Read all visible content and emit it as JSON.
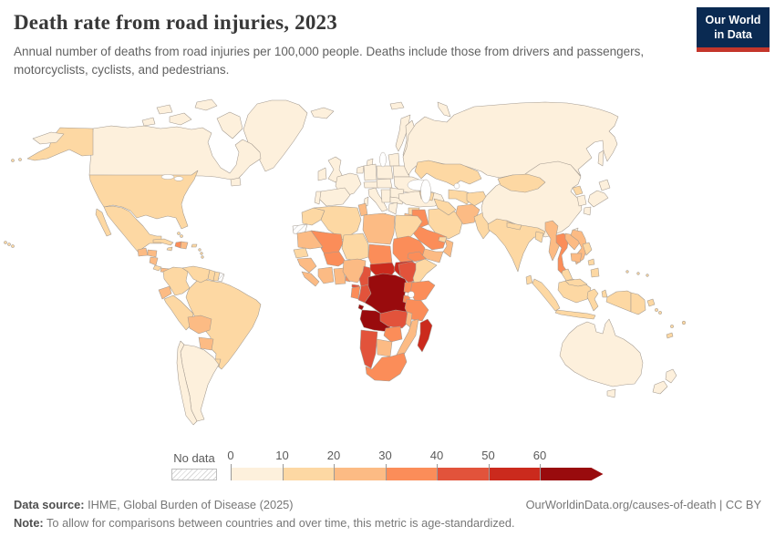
{
  "header": {
    "title": "Death rate from road injuries, 2023",
    "subtitle": "Annual number of deaths from road injuries per 100,000 people. Deaths include those from drivers and passengers, motorcyclists, cyclists, and pedestrians.",
    "logo": {
      "line1": "Our World",
      "line2": "in Data",
      "bg_color": "#0A2A52",
      "accent_color": "#C4362B"
    }
  },
  "chart_data": {
    "type": "choropleth",
    "title": "Death rate from road injuries, 2023",
    "unit": "deaths from road injuries per 100,000 people",
    "year": 2023,
    "legend": {
      "no_data_label": "No data",
      "tick_labels": [
        "0",
        "10",
        "20",
        "30",
        "40",
        "50",
        "60"
      ],
      "thresholds": [
        0,
        10,
        20,
        30,
        40,
        50,
        60
      ],
      "colors": [
        "#FDF0DC",
        "#FDD8A3",
        "#FCBB84",
        "#FB8D59",
        "#E2533B",
        "#CB2A1D",
        "#990B0D"
      ],
      "open_ended": true,
      "border_color": "#a39a90"
    },
    "regions": [
      {
        "name": "Canada",
        "value": 6
      },
      {
        "name": "United States",
        "value": 12
      },
      {
        "name": "Greenland",
        "value": 7
      },
      {
        "name": "Mexico",
        "value": 13
      },
      {
        "name": "Guatemala",
        "value": 21
      },
      {
        "name": "Honduras",
        "value": 23
      },
      {
        "name": "Nicaragua",
        "value": 22
      },
      {
        "name": "Costa Rica",
        "value": 17
      },
      {
        "name": "Panama",
        "value": 20
      },
      {
        "name": "Cuba",
        "value": 11
      },
      {
        "name": "Jamaica",
        "value": 13
      },
      {
        "name": "Haiti",
        "value": 34
      },
      {
        "name": "Dominican Republic",
        "value": 25
      },
      {
        "name": "Puerto Rico",
        "value": 12
      },
      {
        "name": "Bahamas",
        "value": 12
      },
      {
        "name": "Lesser Antilles",
        "value": 15
      },
      {
        "name": "Colombia",
        "value": 15
      },
      {
        "name": "Venezuela",
        "value": 18
      },
      {
        "name": "Guyana",
        "value": 17
      },
      {
        "name": "Suriname",
        "value": 16
      },
      {
        "name": "French Guiana",
        "value": null
      },
      {
        "name": "Ecuador",
        "value": 22
      },
      {
        "name": "Peru",
        "value": 14
      },
      {
        "name": "Brazil",
        "value": 16
      },
      {
        "name": "Bolivia",
        "value": 24
      },
      {
        "name": "Paraguay",
        "value": 23
      },
      {
        "name": "Uruguay",
        "value": 12
      },
      {
        "name": "Argentina",
        "value": 9
      },
      {
        "name": "Chile",
        "value": 8
      },
      {
        "name": "Iceland",
        "value": 5
      },
      {
        "name": "United Kingdom",
        "value": 3
      },
      {
        "name": "Ireland",
        "value": 3
      },
      {
        "name": "Norway",
        "value": 3
      },
      {
        "name": "Sweden",
        "value": 3
      },
      {
        "name": "Finland",
        "value": 4
      },
      {
        "name": "Denmark",
        "value": 4
      },
      {
        "name": "Netherlands",
        "value": 4
      },
      {
        "name": "Germany",
        "value": 4
      },
      {
        "name": "France",
        "value": 5
      },
      {
        "name": "Spain",
        "value": 4
      },
      {
        "name": "Portugal",
        "value": 6
      },
      {
        "name": "Italy",
        "value": 5
      },
      {
        "name": "Austria",
        "value": 4
      },
      {
        "name": "Czechia",
        "value": 5
      },
      {
        "name": "Poland",
        "value": 6
      },
      {
        "name": "Baltic States",
        "value": 6
      },
      {
        "name": "Belarus",
        "value": 7
      },
      {
        "name": "Ukraine",
        "value": 8
      },
      {
        "name": "Romania",
        "value": 8
      },
      {
        "name": "Serbia",
        "value": 6
      },
      {
        "name": "Bulgaria",
        "value": 7
      },
      {
        "name": "Greece",
        "value": 7
      },
      {
        "name": "Turkey",
        "value": 9
      },
      {
        "name": "Georgia",
        "value": 12
      },
      {
        "name": "Russia",
        "value": 9
      },
      {
        "name": "Kazakhstan",
        "value": 13
      },
      {
        "name": "Uzbekistan",
        "value": 13
      },
      {
        "name": "Turkmenistan",
        "value": 15
      },
      {
        "name": "Kyrgyzstan",
        "value": 12
      },
      {
        "name": "Afghanistan",
        "value": 22
      },
      {
        "name": "Pakistan",
        "value": 13
      },
      {
        "name": "India",
        "value": 12
      },
      {
        "name": "Nepal",
        "value": 14
      },
      {
        "name": "Bangladesh",
        "value": 11
      },
      {
        "name": "Sri Lanka",
        "value": 13
      },
      {
        "name": "Syria",
        "value": 15
      },
      {
        "name": "Jordan",
        "value": 20
      },
      {
        "name": "Iraq",
        "value": 31
      },
      {
        "name": "Iran",
        "value": 17
      },
      {
        "name": "Saudi Arabia",
        "value": 33
      },
      {
        "name": "Yemen",
        "value": 24
      },
      {
        "name": "Oman",
        "value": 25
      },
      {
        "name": "United Arab Emirates",
        "value": 18
      },
      {
        "name": "China",
        "value": 9
      },
      {
        "name": "Mongolia",
        "value": 15
      },
      {
        "name": "North Korea",
        "value": 13
      },
      {
        "name": "South Korea",
        "value": 5
      },
      {
        "name": "Japan",
        "value": 3
      },
      {
        "name": "Taiwan",
        "value": 8
      },
      {
        "name": "Myanmar",
        "value": 23
      },
      {
        "name": "Thailand",
        "value": 31
      },
      {
        "name": "Laos",
        "value": 27
      },
      {
        "name": "Vietnam",
        "value": 24
      },
      {
        "name": "Cambodia",
        "value": 23
      },
      {
        "name": "Malaysia",
        "value": 18
      },
      {
        "name": "Indonesia",
        "value": 13
      },
      {
        "name": "Philippines",
        "value": 12
      },
      {
        "name": "Papua New Guinea",
        "value": 15
      },
      {
        "name": "Micronesia",
        "value": 10
      },
      {
        "name": "Solomon Islands",
        "value": 16
      },
      {
        "name": "Vanuatu",
        "value": 15
      },
      {
        "name": "Fiji",
        "value": 14
      },
      {
        "name": "New Caledonia",
        "value": 12
      },
      {
        "name": "Australia",
        "value": 5
      },
      {
        "name": "New Zealand",
        "value": 7
      },
      {
        "name": "Morocco",
        "value": 19
      },
      {
        "name": "Western Sahara",
        "value": null
      },
      {
        "name": "Algeria",
        "value": 17
      },
      {
        "name": "Tunisia",
        "value": 21
      },
      {
        "name": "Libya",
        "value": 23
      },
      {
        "name": "Egypt",
        "value": 15
      },
      {
        "name": "Mauritania",
        "value": 26
      },
      {
        "name": "Mali",
        "value": 32
      },
      {
        "name": "Senegal",
        "value": 19
      },
      {
        "name": "Guinea",
        "value": 29
      },
      {
        "name": "Sierra Leone",
        "value": 28
      },
      {
        "name": "Ivory Coast",
        "value": 27
      },
      {
        "name": "Ghana",
        "value": 28
      },
      {
        "name": "Togo",
        "value": 39
      },
      {
        "name": "Benin",
        "value": 38
      },
      {
        "name": "Burkina Faso",
        "value": 33
      },
      {
        "name": "Niger",
        "value": 18
      },
      {
        "name": "Nigeria",
        "value": 22
      },
      {
        "name": "Chad",
        "value": 34
      },
      {
        "name": "Sudan",
        "value": 31
      },
      {
        "name": "Eritrea",
        "value": 33
      },
      {
        "name": "Ethiopia",
        "value": 42
      },
      {
        "name": "Somalia",
        "value": 14
      },
      {
        "name": "South Sudan",
        "value": 53
      },
      {
        "name": "Central African Republic",
        "value": 56
      },
      {
        "name": "Cameroon",
        "value": 44
      },
      {
        "name": "Equatorial Guinea",
        "value": 48
      },
      {
        "name": "Gabon",
        "value": 36
      },
      {
        "name": "Congo",
        "value": 46
      },
      {
        "name": "Democratic Republic of Congo",
        "value": 66
      },
      {
        "name": "Uganda",
        "value": 36
      },
      {
        "name": "Kenya",
        "value": 33
      },
      {
        "name": "Rwanda",
        "value": 35
      },
      {
        "name": "Tanzania",
        "value": 34
      },
      {
        "name": "Angola",
        "value": 64
      },
      {
        "name": "Zambia",
        "value": 43
      },
      {
        "name": "Malawi",
        "value": 27
      },
      {
        "name": "Mozambique",
        "value": 24
      },
      {
        "name": "Zimbabwe",
        "value": 34
      },
      {
        "name": "Botswana",
        "value": 23
      },
      {
        "name": "Namibia",
        "value": 42
      },
      {
        "name": "South Africa",
        "value": 38
      },
      {
        "name": "Madagascar",
        "value": 54
      }
    ]
  },
  "footer": {
    "source_label": "Data source:",
    "source_text": " IHME, Global Burden of Disease (2025)",
    "link_text": "OurWorldinData.org/causes-of-death | CC BY",
    "note_label": "Note:",
    "note_text": " To allow for comparisons between countries and over time, this metric is age-standardized."
  }
}
